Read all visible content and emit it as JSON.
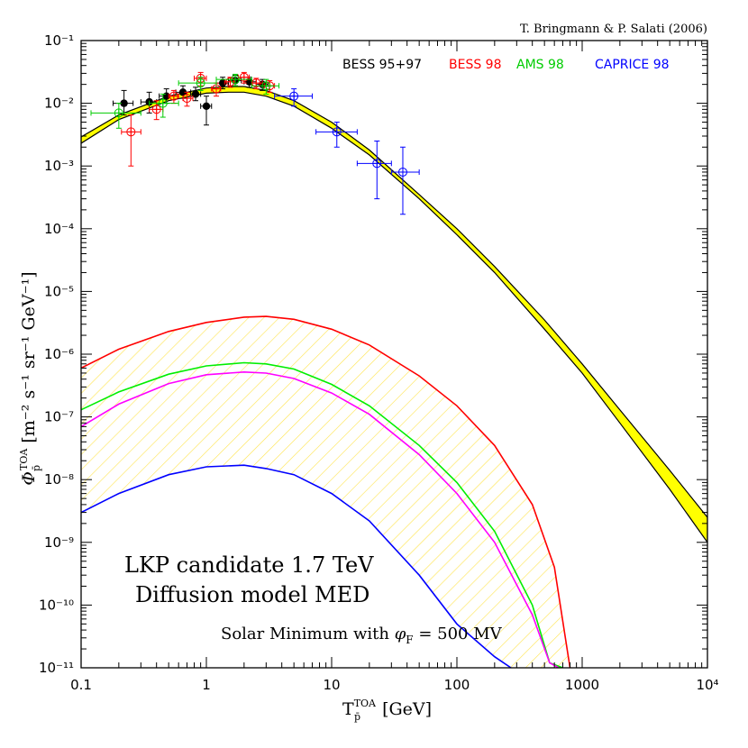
{
  "chart_data": {
    "type": "scatter",
    "credit": "T. Bringmann & P. Salati (2006)",
    "x_axis": {
      "scale": "log",
      "range": [
        0.1,
        10000
      ],
      "ticks": [
        "0.1",
        "1",
        "10",
        "100",
        "1000",
        "10⁴"
      ]
    },
    "y_axis": {
      "scale": "log",
      "range": [
        1e-11,
        0.1
      ],
      "ticks": [
        "10⁻¹¹",
        "10⁻¹⁰",
        "10⁻⁹",
        "10⁻⁸",
        "10⁻⁷",
        "10⁻⁶",
        "10⁻⁵",
        "10⁻⁴",
        "10⁻³",
        "10⁻²",
        "10⁻¹"
      ]
    },
    "annotations": {
      "line1": "LKP candidate 1.7 TeV",
      "line2": "Diffusion model MED",
      "line3": "Solar Minimum with φF = 500 MV"
    },
    "legend": [
      {
        "name": "BESS 95+97",
        "color": "#000000"
      },
      {
        "name": "BESS 98",
        "color": "#ff0000"
      },
      {
        "name": "AMS 98",
        "color": "#00cc00"
      },
      {
        "name": "CAPRICE 98",
        "color": "#0000ff"
      }
    ],
    "background_band": {
      "x": [
        0.1,
        0.2,
        0.5,
        1,
        1.5,
        2,
        3,
        5,
        10,
        20,
        50,
        100,
        200,
        500,
        1000,
        2000,
        5000,
        10000
      ],
      "upper": [
        0.0029,
        0.0065,
        0.013,
        0.0175,
        0.0185,
        0.0185,
        0.016,
        0.011,
        0.005,
        0.0018,
        0.00035,
        0.0001,
        2.5e-05,
        3.5e-06,
        7e-07,
        1.3e-07,
        1.4e-08,
        2.5e-09
      ],
      "lower": [
        0.0023,
        0.0055,
        0.011,
        0.0145,
        0.015,
        0.015,
        0.013,
        0.009,
        0.004,
        0.0015,
        0.0003,
        8e-05,
        2e-05,
        2.5e-06,
        5e-07,
        8e-08,
        7e-09,
        1e-09
      ]
    },
    "signal_curves": [
      {
        "color": "#ff0000",
        "x": [
          0.1,
          0.2,
          0.5,
          1,
          2,
          3,
          5,
          10,
          20,
          50,
          100,
          200,
          400,
          600,
          800
        ],
        "y": [
          6e-07,
          1.2e-06,
          2.3e-06,
          3.2e-06,
          3.9e-06,
          4e-06,
          3.6e-06,
          2.5e-06,
          1.4e-06,
          4.5e-07,
          1.5e-07,
          3.5e-08,
          4e-09,
          4e-10,
          1e-11
        ]
      },
      {
        "color": "#00ee00",
        "x": [
          0.1,
          0.2,
          0.5,
          1,
          2,
          3,
          5,
          10,
          20,
          50,
          100,
          200,
          400,
          550,
          700
        ],
        "y": [
          1.3e-07,
          2.5e-07,
          4.8e-07,
          6.5e-07,
          7.3e-07,
          7e-07,
          5.8e-07,
          3.3e-07,
          1.5e-07,
          3.5e-08,
          9e-09,
          1.5e-09,
          1e-10,
          1.2e-11,
          1e-11
        ]
      },
      {
        "color": "#ff00ff",
        "x": [
          0.1,
          0.2,
          0.5,
          1,
          2,
          3,
          5,
          10,
          20,
          50,
          100,
          200,
          400,
          550,
          650
        ],
        "y": [
          7e-08,
          1.6e-07,
          3.4e-07,
          4.7e-07,
          5.2e-07,
          5e-07,
          4.1e-07,
          2.4e-07,
          1.1e-07,
          2.5e-08,
          6e-09,
          1e-09,
          7e-11,
          1.2e-11,
          1e-11
        ]
      },
      {
        "color": "#0000ff",
        "x": [
          0.1,
          0.2,
          0.5,
          1,
          2,
          3,
          5,
          10,
          20,
          50,
          100,
          200,
          270
        ],
        "y": [
          3e-09,
          6e-09,
          1.2e-08,
          1.6e-08,
          1.7e-08,
          1.5e-08,
          1.2e-08,
          6e-09,
          2.2e-09,
          3e-10,
          5e-11,
          1.5e-11,
          1e-11
        ]
      }
    ],
    "data_points": [
      {
        "series": "BESS 95+97",
        "color": "#000000",
        "filled": true,
        "points": [
          {
            "x": 0.22,
            "y": 0.01,
            "xlo": 0.18,
            "xhi": 0.26,
            "ylo": 0.0065,
            "yhi": 0.016
          },
          {
            "x": 0.35,
            "y": 0.0105,
            "xlo": 0.3,
            "xhi": 0.4,
            "ylo": 0.007,
            "yhi": 0.015
          },
          {
            "x": 0.48,
            "y": 0.013,
            "xlo": 0.42,
            "xhi": 0.55,
            "ylo": 0.01,
            "yhi": 0.017
          },
          {
            "x": 0.65,
            "y": 0.015,
            "xlo": 0.57,
            "xhi": 0.75,
            "ylo": 0.012,
            "yhi": 0.019
          },
          {
            "x": 0.82,
            "y": 0.014,
            "xlo": 0.75,
            "xhi": 0.9,
            "ylo": 0.011,
            "yhi": 0.018
          },
          {
            "x": 1.0,
            "y": 0.009,
            "xlo": 0.9,
            "xhi": 1.1,
            "ylo": 0.0045,
            "yhi": 0.013
          },
          {
            "x": 1.35,
            "y": 0.021,
            "xlo": 1.2,
            "xhi": 1.5,
            "ylo": 0.017,
            "yhi": 0.026
          },
          {
            "x": 1.7,
            "y": 0.023,
            "xlo": 1.5,
            "xhi": 1.9,
            "ylo": 0.019,
            "yhi": 0.028
          },
          {
            "x": 2.2,
            "y": 0.022,
            "xlo": 2.0,
            "xhi": 2.5,
            "ylo": 0.018,
            "yhi": 0.026
          },
          {
            "x": 2.8,
            "y": 0.02,
            "xlo": 2.5,
            "xhi": 3.1,
            "ylo": 0.016,
            "yhi": 0.024
          }
        ]
      },
      {
        "series": "BESS 98",
        "color": "#ff0000",
        "filled": false,
        "points": [
          {
            "x": 0.25,
            "y": 0.0035,
            "xlo": 0.21,
            "xhi": 0.3,
            "ylo": 0.001,
            "yhi": 0.0065
          },
          {
            "x": 0.4,
            "y": 0.008,
            "xlo": 0.35,
            "xhi": 0.45,
            "ylo": 0.0055,
            "yhi": 0.011
          },
          {
            "x": 0.55,
            "y": 0.013,
            "xlo": 0.5,
            "xhi": 0.6,
            "ylo": 0.01,
            "yhi": 0.016
          },
          {
            "x": 0.7,
            "y": 0.012,
            "xlo": 0.65,
            "xhi": 0.78,
            "ylo": 0.009,
            "yhi": 0.015
          },
          {
            "x": 0.9,
            "y": 0.025,
            "xlo": 0.8,
            "xhi": 1.0,
            "ylo": 0.019,
            "yhi": 0.031
          },
          {
            "x": 1.2,
            "y": 0.017,
            "xlo": 1.1,
            "xhi": 1.3,
            "ylo": 0.013,
            "yhi": 0.021
          },
          {
            "x": 1.55,
            "y": 0.022,
            "xlo": 1.4,
            "xhi": 1.7,
            "ylo": 0.018,
            "yhi": 0.026
          },
          {
            "x": 2.0,
            "y": 0.026,
            "xlo": 1.8,
            "xhi": 2.2,
            "ylo": 0.021,
            "yhi": 0.031
          },
          {
            "x": 2.5,
            "y": 0.021,
            "xlo": 2.3,
            "xhi": 2.8,
            "ylo": 0.017,
            "yhi": 0.025
          },
          {
            "x": 3.2,
            "y": 0.019,
            "xlo": 2.9,
            "xhi": 3.5,
            "ylo": 0.015,
            "yhi": 0.023
          }
        ]
      },
      {
        "series": "AMS 98",
        "color": "#00cc00",
        "filled": false,
        "points": [
          {
            "x": 0.2,
            "y": 0.007,
            "xlo": 0.12,
            "xhi": 0.3,
            "ylo": 0.004,
            "yhi": 0.01
          },
          {
            "x": 0.45,
            "y": 0.01,
            "xlo": 0.35,
            "xhi": 0.6,
            "ylo": 0.006,
            "yhi": 0.014
          },
          {
            "x": 0.9,
            "y": 0.021,
            "xlo": 0.6,
            "xhi": 1.2,
            "ylo": 0.016,
            "yhi": 0.026
          },
          {
            "x": 1.7,
            "y": 0.024,
            "xlo": 1.2,
            "xhi": 2.3,
            "ylo": 0.019,
            "yhi": 0.029
          },
          {
            "x": 3.0,
            "y": 0.019,
            "xlo": 2.3,
            "xhi": 3.8,
            "ylo": 0.014,
            "yhi": 0.024
          }
        ]
      },
      {
        "series": "CAPRICE 98",
        "color": "#0000ff",
        "filled": false,
        "points": [
          {
            "x": 5.0,
            "y": 0.013,
            "xlo": 3.5,
            "xhi": 7.0,
            "ylo": 0.009,
            "yhi": 0.017
          },
          {
            "x": 11.0,
            "y": 0.0035,
            "xlo": 7.5,
            "xhi": 16.0,
            "ylo": 0.002,
            "yhi": 0.005
          },
          {
            "x": 23.0,
            "y": 0.0011,
            "xlo": 16.0,
            "xhi": 30.0,
            "ylo": 0.0003,
            "yhi": 0.0025
          },
          {
            "x": 37.0,
            "y": 0.0008,
            "xlo": 30.0,
            "xhi": 50.0,
            "ylo": 0.00017,
            "yhi": 0.002
          }
        ]
      }
    ]
  }
}
